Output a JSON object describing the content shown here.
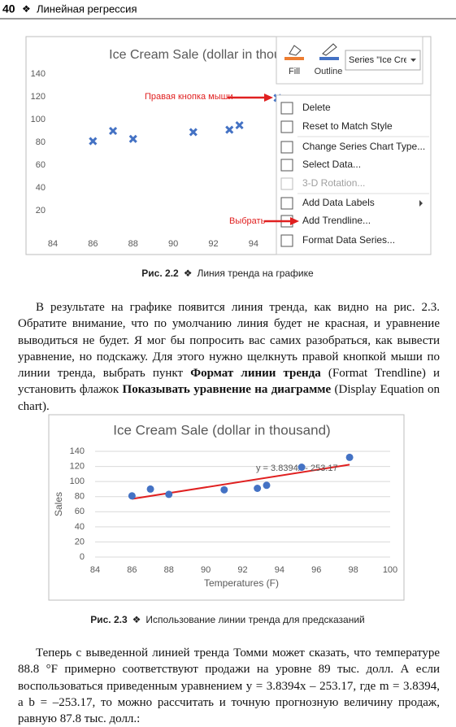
{
  "header": {
    "page_number": "40",
    "ornament": "❖",
    "title": "Линейная регрессия"
  },
  "figure1": {
    "toolbar": {
      "fill": "Fill",
      "outline": "Outline",
      "series_dropdown": "Series \"Ice Crea"
    },
    "context_menu": [
      "Delete",
      "Reset to Match Style",
      "Change Series Chart Type...",
      "Select Data...",
      "3-D Rotation...",
      "Add Data Labels",
      "Add Trendline...",
      "Format Data Series..."
    ],
    "annotations": [
      "Правая кнопка мыши",
      "Выбрать"
    ],
    "caption": {
      "label": "Рис. 2.2",
      "ornament": "❖",
      "text": "Линия тренда на графике"
    }
  },
  "chart_data": [
    {
      "type": "scatter",
      "title": "Ice Cream Sale (dollar in thou",
      "x": [
        86,
        87,
        88,
        91,
        92.8,
        93.3,
        95.2
      ],
      "values": [
        81,
        90,
        83,
        89,
        91,
        95,
        119
      ],
      "color": "#4472c4",
      "marker": "x",
      "xlim": [
        84,
        100
      ],
      "xticks": [
        84,
        86,
        88,
        90,
        92,
        94
      ],
      "ylim": [
        0,
        140
      ],
      "yticks": [
        20,
        40,
        60,
        80,
        100,
        120,
        140
      ],
      "grid": false
    },
    {
      "type": "scatter",
      "title": "Ice Cream Sale (dollar in thousand)",
      "x_label": "Temperatures (F)",
      "y_label": "Sales",
      "x": [
        86,
        87,
        88,
        91,
        92.8,
        93.3,
        95.2,
        97.8
      ],
      "values": [
        81,
        90,
        83,
        89,
        91,
        95,
        119,
        132
      ],
      "color": "#4472c4",
      "marker": "circle",
      "xlim": [
        84,
        100
      ],
      "xticks": [
        84,
        86,
        88,
        90,
        92,
        94,
        96,
        98,
        100
      ],
      "ylim": [
        0,
        140
      ],
      "yticks": [
        0,
        20,
        40,
        60,
        80,
        100,
        120,
        140
      ],
      "grid": true,
      "trendline": {
        "slope": 3.8394,
        "intercept": -253.17,
        "color": "#e02020",
        "label": "y = 3.8394x - 253.17"
      }
    }
  ],
  "figure2": {
    "caption": {
      "label": "Рис. 2.3",
      "ornament": "❖",
      "text": "Использование линии тренда для предсказаний"
    }
  },
  "paragraphs": [
    [
      {
        "text": "В результате на графике появится линия тренда, как видно на рис. 2.3. Обратите внимание, что по умолчанию линия будет не красная, и уравнение выводиться не будет. Я мог бы попросить вас самих разобраться, как вывести уравнение, но подскажу. Для этого нужно щелкнуть правой кнопкой мыши по линии тренда, выбрать пункт ",
        "bold": false
      },
      {
        "text": "Формат линии тренда",
        "bold": true
      },
      {
        "text": " (Format Trendline) и установить флажок ",
        "bold": false
      },
      {
        "text": "Показывать уравнение на диаграмме",
        "bold": true
      },
      {
        "text": " (Display Equation on chart).",
        "bold": false
      }
    ],
    [
      {
        "text": "Теперь с выведенной линией тренда Томми может сказать, что температуре 88.8 °F примерно соответствуют продажи на уровне 89 тыс. долл. А если воспользоваться приведенным уравнением y = 3.8394x – 253.17, где m = 3.8394, а b = –253.17, то можно рассчитать и точную прогнозную величину продаж, равную 87.8 тыс. долл.:",
        "bold": false
      }
    ]
  ]
}
